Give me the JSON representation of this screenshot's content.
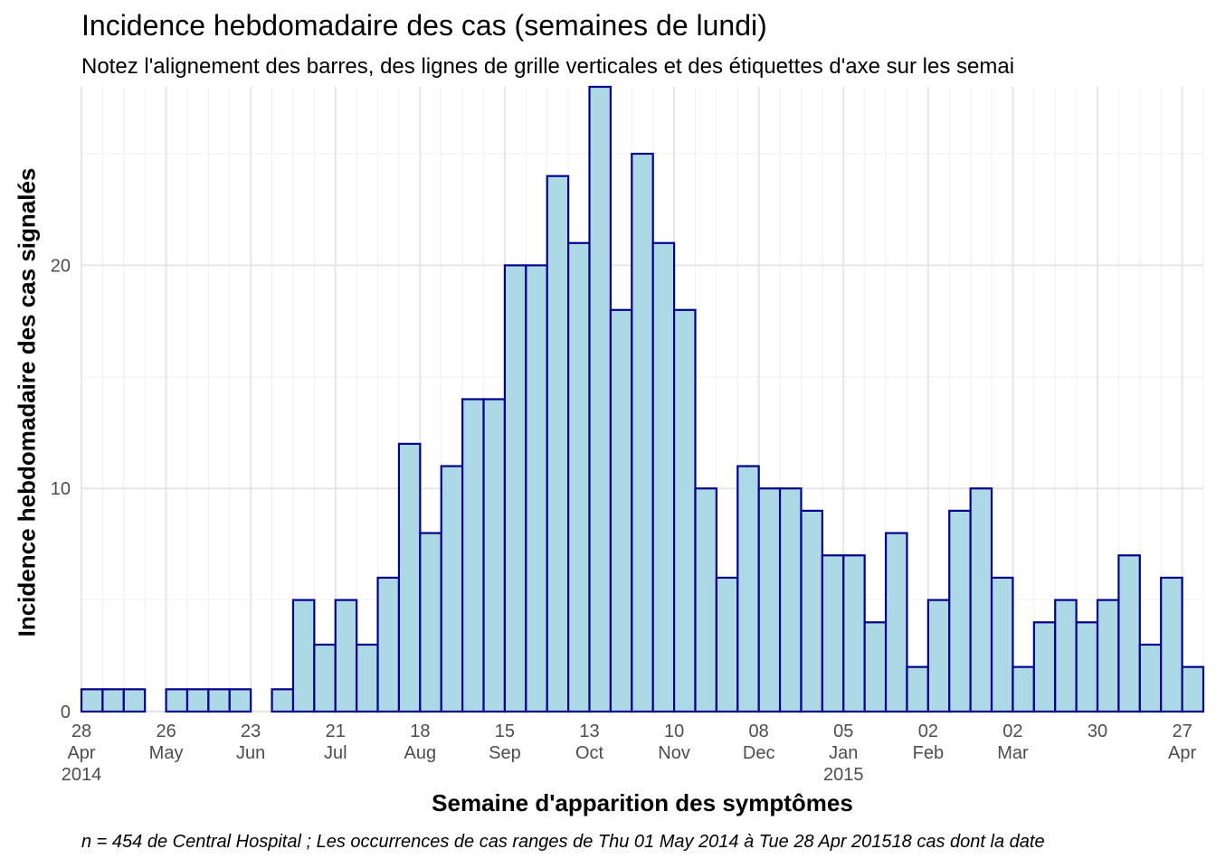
{
  "title": "Incidence hebdomadaire des cas (semaines de lundi)",
  "subtitle": "Notez l'alignement des barres, des lignes de grille verticales et des étiquettes d'axe sur les semai",
  "caption": "n = 454 de Central Hospital ; Les occurrences de cas ranges de Thu 01 May 2014 à Tue 28 Apr 201518 cas dont la date",
  "chart_data": {
    "type": "bar",
    "title": "Incidence hebdomadaire des cas (semaines de lundi)",
    "xlabel": "Semaine d'apparition des symptômes",
    "ylabel": "Incidence hebdomadaire des cas signalés",
    "ylim": [
      0,
      28
    ],
    "grid": true,
    "fill_color": "#ADD8E6",
    "border_color": "#00008B",
    "week_starts": [
      "2014-04-28",
      "2014-05-05",
      "2014-05-12",
      "2014-05-19",
      "2014-05-26",
      "2014-06-02",
      "2014-06-09",
      "2014-06-16",
      "2014-06-23",
      "2014-06-30",
      "2014-07-07",
      "2014-07-14",
      "2014-07-21",
      "2014-07-28",
      "2014-08-04",
      "2014-08-11",
      "2014-08-18",
      "2014-08-25",
      "2014-09-01",
      "2014-09-08",
      "2014-09-15",
      "2014-09-22",
      "2014-09-29",
      "2014-10-06",
      "2014-10-13",
      "2014-10-20",
      "2014-10-27",
      "2014-11-03",
      "2014-11-10",
      "2014-11-17",
      "2014-11-24",
      "2014-12-01",
      "2014-12-08",
      "2014-12-15",
      "2014-12-22",
      "2014-12-29",
      "2015-01-05",
      "2015-01-12",
      "2015-01-19",
      "2015-01-26",
      "2015-02-02",
      "2015-02-09",
      "2015-02-16",
      "2015-02-23",
      "2015-03-02",
      "2015-03-09",
      "2015-03-16",
      "2015-03-23",
      "2015-03-30",
      "2015-04-06",
      "2015-04-13",
      "2015-04-20",
      "2015-04-27"
    ],
    "values": [
      1,
      1,
      1,
      0,
      1,
      1,
      1,
      1,
      0,
      1,
      5,
      3,
      5,
      3,
      6,
      12,
      8,
      11,
      14,
      14,
      20,
      20,
      24,
      21,
      28,
      18,
      25,
      21,
      18,
      10,
      6,
      11,
      10,
      10,
      9,
      7,
      7,
      4,
      8,
      2,
      5,
      9,
      10,
      6,
      2,
      4,
      5,
      4,
      5,
      7,
      3,
      6,
      2
    ],
    "y_ticks": [
      "0",
      "10",
      "20"
    ],
    "x_ticks": [
      {
        "date": "2014-04-28",
        "label": [
          "28",
          "Apr",
          "2014"
        ]
      },
      {
        "date": "2014-05-26",
        "label": [
          "26",
          "May"
        ]
      },
      {
        "date": "2014-06-23",
        "label": [
          "23",
          "Jun"
        ]
      },
      {
        "date": "2014-07-21",
        "label": [
          "21",
          "Jul"
        ]
      },
      {
        "date": "2014-08-18",
        "label": [
          "18",
          "Aug"
        ]
      },
      {
        "date": "2014-09-15",
        "label": [
          "15",
          "Sep"
        ]
      },
      {
        "date": "2014-10-13",
        "label": [
          "13",
          "Oct"
        ]
      },
      {
        "date": "2014-11-10",
        "label": [
          "10",
          "Nov"
        ]
      },
      {
        "date": "2014-12-08",
        "label": [
          "08",
          "Dec"
        ]
      },
      {
        "date": "2015-01-05",
        "label": [
          "05",
          "Jan",
          "2015"
        ]
      },
      {
        "date": "2015-02-02",
        "label": [
          "02",
          "Feb"
        ]
      },
      {
        "date": "2015-03-02",
        "label": [
          "02",
          "Mar"
        ]
      },
      {
        "date": "2015-03-30",
        "label": [
          "30"
        ]
      },
      {
        "date": "2015-04-27",
        "label": [
          "27",
          "Apr"
        ]
      }
    ]
  }
}
